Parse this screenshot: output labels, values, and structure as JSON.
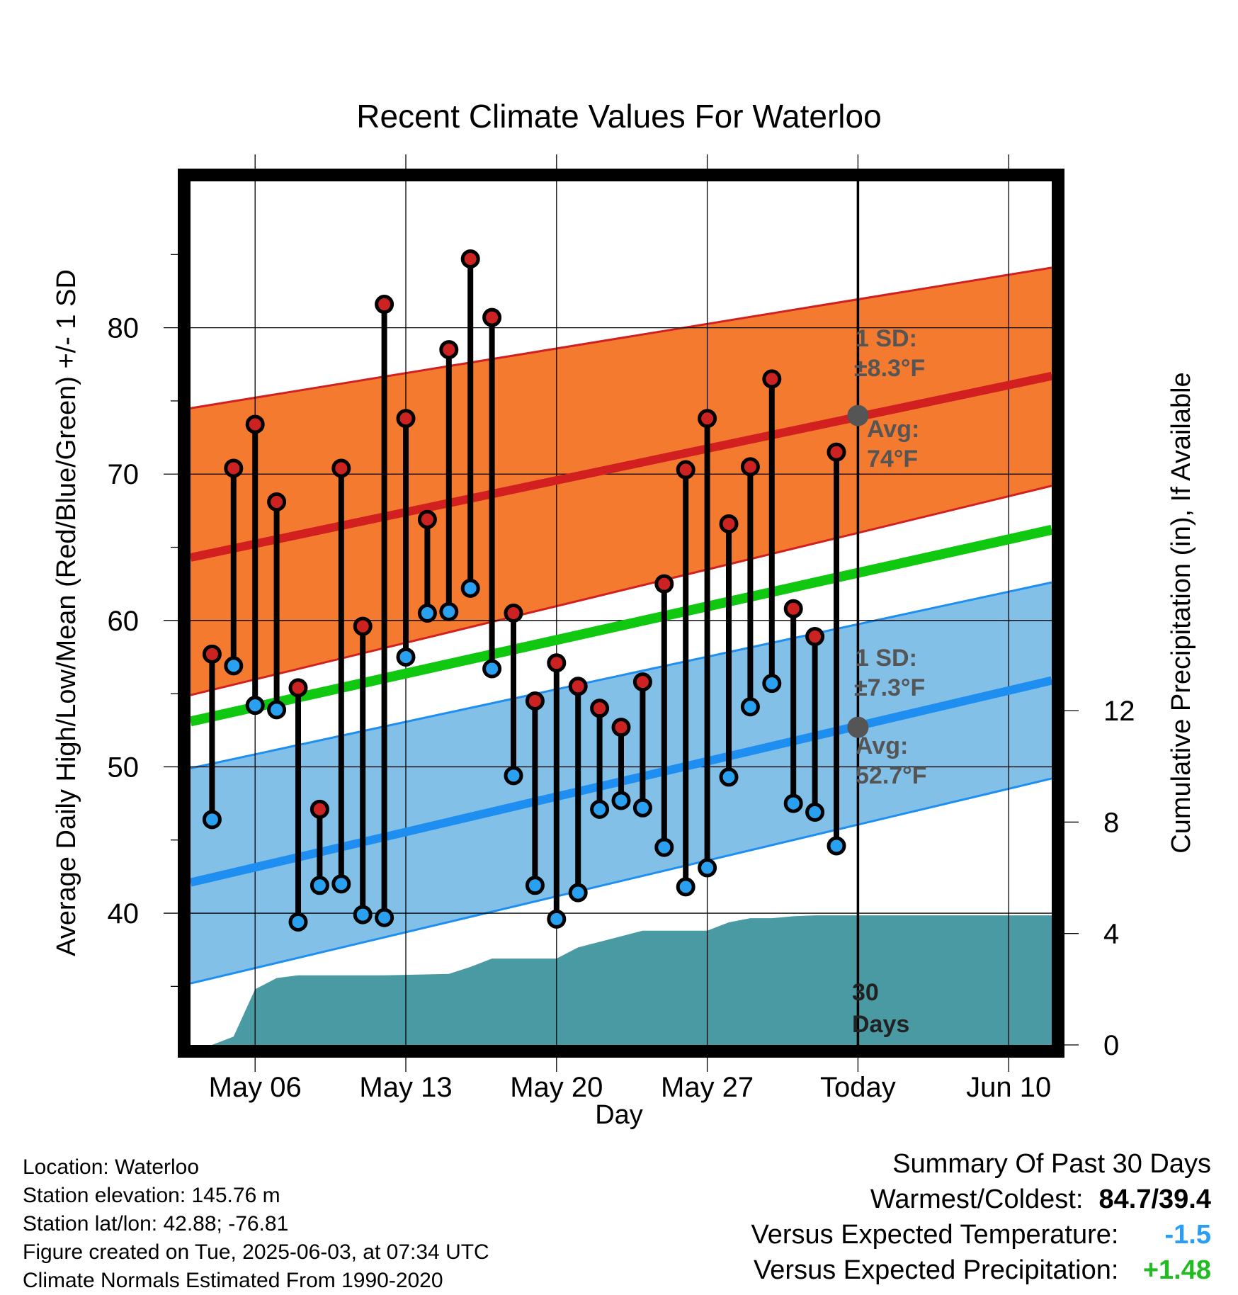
{
  "chart_data": {
    "type": "line",
    "title": "Recent Climate Values For Waterloo",
    "xlabel": "Day",
    "ylabel_left": "Average Daily High/Low/Mean (Red/Blue/Green) +/- 1 SD",
    "ylabel_right": "Cumulative Precipitation (in), If Available",
    "x_tick_labels": [
      "May 06",
      "May 13",
      "May 20",
      "May 27",
      "Today",
      "Jun 10"
    ],
    "x_tick_dates": [
      "2025-05-06",
      "2025-05-13",
      "2025-05-20",
      "2025-05-27",
      "2025-06-03",
      "2025-06-10"
    ],
    "xlim": [
      "2025-05-03",
      "2025-06-12"
    ],
    "ylim_left": [
      31,
      90
    ],
    "y_ticks_left": [
      40,
      50,
      60,
      70,
      80
    ],
    "ylim_right": [
      0,
      31
    ],
    "y_ticks_right": [
      0,
      4,
      8,
      12
    ],
    "today": "2025-06-03",
    "today_label_line1": "30",
    "today_label_line2": "Days",
    "observed": {
      "dates": [
        "2025-05-04",
        "2025-05-05",
        "2025-05-06",
        "2025-05-07",
        "2025-05-08",
        "2025-05-09",
        "2025-05-10",
        "2025-05-11",
        "2025-05-12",
        "2025-05-13",
        "2025-05-14",
        "2025-05-15",
        "2025-05-16",
        "2025-05-17",
        "2025-05-18",
        "2025-05-19",
        "2025-05-20",
        "2025-05-21",
        "2025-05-22",
        "2025-05-23",
        "2025-05-24",
        "2025-05-25",
        "2025-05-26",
        "2025-05-27",
        "2025-05-28",
        "2025-05-29",
        "2025-05-30",
        "2025-05-31",
        "2025-06-01",
        "2025-06-02"
      ],
      "highs": [
        57.7,
        70.4,
        73.4,
        68.1,
        55.4,
        47.1,
        70.4,
        59.6,
        81.6,
        73.8,
        66.9,
        78.5,
        84.7,
        80.7,
        60.5,
        54.5,
        57.1,
        55.5,
        54.0,
        52.7,
        55.8,
        62.5,
        70.3,
        73.8,
        66.6,
        70.5,
        76.5,
        60.8,
        58.9,
        71.5
      ],
      "lows": [
        46.4,
        56.9,
        54.2,
        53.9,
        39.4,
        41.9,
        42.0,
        39.9,
        39.7,
        57.5,
        60.5,
        60.6,
        62.2,
        56.7,
        49.4,
        41.9,
        39.6,
        41.4,
        47.1,
        47.7,
        47.2,
        44.5,
        41.8,
        43.1,
        49.3,
        54.1,
        55.7,
        47.5,
        46.9,
        44.6
      ]
    },
    "normals": {
      "dates": [
        "2025-05-03",
        "2025-06-12"
      ],
      "avg_high": [
        64.3,
        76.7
      ],
      "high_sd_upper": [
        74.5,
        84.1
      ],
      "high_sd_lower": [
        54.9,
        69.2
      ],
      "avg_mean": [
        53.1,
        66.2
      ],
      "avg_low": [
        42.1,
        55.9
      ],
      "low_sd_upper": [
        49.9,
        62.6
      ],
      "low_sd_lower": [
        35.2,
        49.2
      ]
    },
    "precipitation": {
      "dates": [
        "2025-05-04",
        "2025-05-05",
        "2025-05-06",
        "2025-05-07",
        "2025-05-08",
        "2025-05-10",
        "2025-05-12",
        "2025-05-15",
        "2025-05-16",
        "2025-05-17",
        "2025-05-18",
        "2025-05-20",
        "2025-05-21",
        "2025-05-22",
        "2025-05-23",
        "2025-05-24",
        "2025-05-26",
        "2025-05-27",
        "2025-05-28",
        "2025-05-29",
        "2025-05-30",
        "2025-05-31",
        "2025-06-01",
        "2025-06-03",
        "2025-06-12"
      ],
      "cumulative": [
        0.0,
        0.3,
        2.0,
        2.4,
        2.5,
        2.5,
        2.5,
        2.55,
        2.8,
        3.1,
        3.1,
        3.1,
        3.5,
        3.7,
        3.9,
        4.1,
        4.1,
        4.1,
        4.4,
        4.55,
        4.55,
        4.62,
        4.65,
        4.65,
        4.65
      ]
    },
    "annotations": {
      "high_sd_label_line1": "1 SD:",
      "high_sd_label_line2": "±8.3°F",
      "high_avg_label_line1": "Avg:",
      "high_avg_label_line2": "74°F",
      "high_avg_today": 74.0,
      "low_sd_label_line1": "1 SD:",
      "low_sd_label_line2": "±7.3°F",
      "low_avg_label_line1": "Avg:",
      "low_avg_label_line2": "52.7°F",
      "low_avg_today": 52.7
    },
    "colors": {
      "high_band": "#f47a30",
      "high_line": "#d22020",
      "low_band": "#82c0e8",
      "low_line": "#1e8ff0",
      "mean_line": "#10c810",
      "precip": "#4a9aa4",
      "high_marker": "#cc2222",
      "low_marker": "#2aa0f0",
      "annotation": "#555555"
    },
    "grid": true
  },
  "footer": {
    "location": "Location: Waterloo",
    "elevation": "Station elevation: 145.76 m",
    "latlon": "Station lat/lon: 42.88; -76.81",
    "created": "Figure created on Tue, 2025-06-03, at 07:34 UTC",
    "normals": "Climate Normals Estimated From 1990-2020"
  },
  "summary": {
    "heading": "Summary Of Past 30 Days",
    "warmest_label": "Warmest/Coldest:",
    "warmest_value": "84.7/39.4",
    "temp_label": "Versus Expected Temperature:",
    "temp_value": "-1.5",
    "temp_color": "#2a9df4",
    "precip_label": "Versus Expected Precipitation:",
    "precip_value": "+1.48",
    "precip_color": "#22bb22"
  }
}
